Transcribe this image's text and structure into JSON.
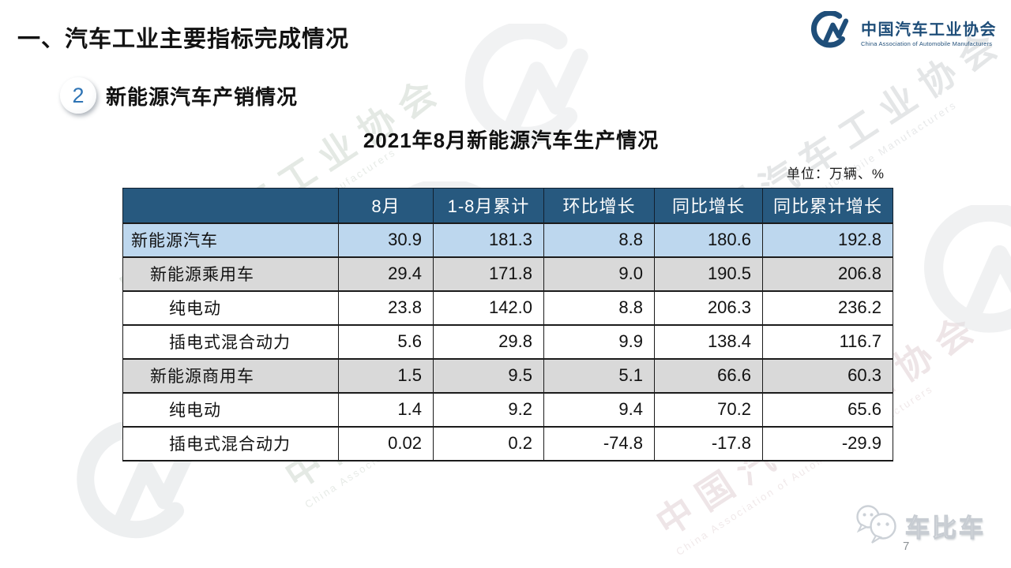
{
  "slide": {
    "title": "一、汽车工业主要指标完成情况",
    "section_badge": "2",
    "section_title": "新能源汽车产销情况",
    "table_title": "2021年8月新能源汽车生产情况",
    "unit_label": "单位：万辆、%",
    "page_number": "7"
  },
  "logo": {
    "org_name_cn": "中国汽车工业协会",
    "org_name_en": "China Association of Automobile Manufacturers"
  },
  "footer": {
    "brand_name": "车比车"
  },
  "watermark": {
    "text_cn": "中国汽车工业协会",
    "text_en": "China Association of Automobile Manufacturers"
  },
  "colors": {
    "header_bg": "#27597F",
    "row_highlight_blue": "#BDD7EE",
    "row_highlight_gray": "#D9D9D9",
    "logo_navy": "#1F4E79",
    "badge_number_blue": "#2E74B5",
    "watermark_gray": "#AEB3B6"
  },
  "table": {
    "columns": [
      "",
      "8月",
      "1-8月累计",
      "环比增长",
      "同比增长",
      "同比累计增长"
    ],
    "rows": [
      {
        "label": "新能源汽车",
        "indent": 0,
        "bg": "blue",
        "values": [
          "30.9",
          "181.3",
          "8.8",
          "180.6",
          "192.8"
        ]
      },
      {
        "label": "新能源乘用车",
        "indent": 1,
        "bg": "gray",
        "values": [
          "29.4",
          "171.8",
          "9.0",
          "190.5",
          "206.8"
        ]
      },
      {
        "label": "纯电动",
        "indent": 2,
        "bg": "white",
        "values": [
          "23.8",
          "142.0",
          "8.8",
          "206.3",
          "236.2"
        ]
      },
      {
        "label": "插电式混合动力",
        "indent": 2,
        "bg": "white",
        "values": [
          "5.6",
          "29.8",
          "9.9",
          "138.4",
          "116.7"
        ]
      },
      {
        "label": "新能源商用车",
        "indent": 1,
        "bg": "gray",
        "values": [
          "1.5",
          "9.5",
          "5.1",
          "66.6",
          "60.3"
        ]
      },
      {
        "label": "纯电动",
        "indent": 2,
        "bg": "white",
        "values": [
          "1.4",
          "9.2",
          "9.4",
          "70.2",
          "65.6"
        ]
      },
      {
        "label": "插电式混合动力",
        "indent": 2,
        "bg": "white",
        "values": [
          "0.02",
          "0.2",
          "-74.8",
          "-17.8",
          "-29.9"
        ]
      }
    ]
  }
}
